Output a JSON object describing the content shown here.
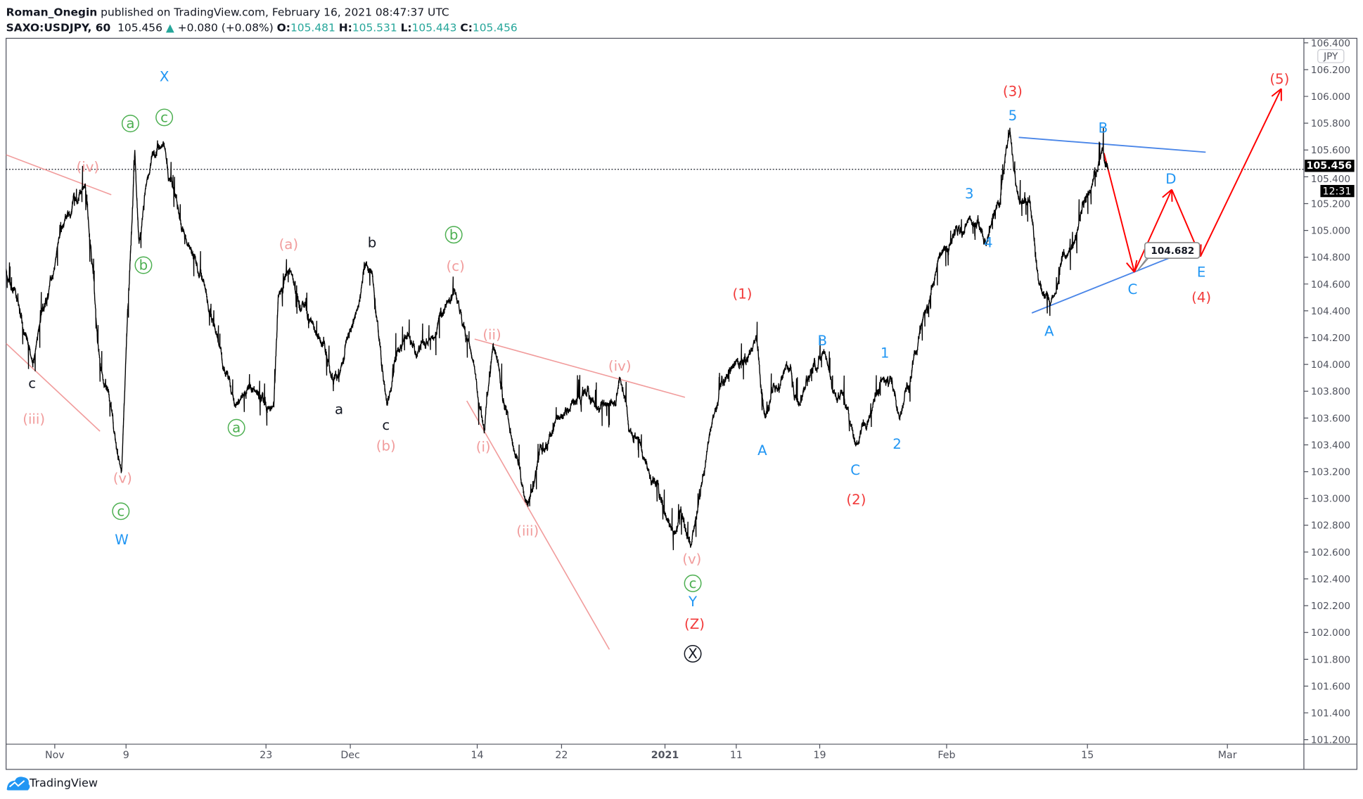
{
  "header": {
    "author": "Roman_Onegin",
    "published": " published on TradingView.com, February 16, 2021 08:47:37 UTC",
    "symbol": "SAXO:USDJPY, 60",
    "last": "105.456",
    "change": "+0.080 (+0.08%)",
    "o_label": "O:",
    "o": "105.481",
    "h_label": "H:",
    "h": "105.531",
    "l_label": "L:",
    "l": "105.443",
    "c_label": "C:",
    "c": "105.456"
  },
  "price_axis": {
    "currency": "JPY",
    "ticks": [
      "106.400",
      "106.200",
      "106.000",
      "105.800",
      "105.600",
      "105.400",
      "105.200",
      "105.000",
      "104.800",
      "104.600",
      "104.400",
      "104.200",
      "104.000",
      "103.800",
      "103.600",
      "103.400",
      "103.200",
      "103.000",
      "102.800",
      "102.600",
      "102.400",
      "102.200",
      "102.000",
      "101.800",
      "101.600",
      "101.400",
      "101.200"
    ],
    "current_price": "105.456",
    "countdown": "12:31"
  },
  "time_axis": {
    "ticks": [
      "Nov",
      "9",
      "23",
      "Dec",
      "14",
      "22",
      "2021",
      "11",
      "19",
      "Feb",
      "15",
      "Mar"
    ]
  },
  "footer": {
    "brand": "TradingView"
  },
  "colors": {
    "pink": "#f19c9c",
    "green": "#4caf50",
    "blue": "#2196f3",
    "red": "#f23a3a",
    "black": "#131722",
    "trend_blue": "#4a86e8",
    "arrow_red": "#ff0000"
  },
  "annotations": [
    {
      "text": "X",
      "color": "blue"
    },
    {
      "text": "a",
      "color": "green",
      "circled": true
    },
    {
      "text": "c",
      "color": "green",
      "circled": true
    },
    {
      "text": "(iv)",
      "color": "pink"
    },
    {
      "text": "b",
      "color": "green",
      "circled": true
    },
    {
      "text": "c",
      "color": "black"
    },
    {
      "text": "(iii)",
      "color": "pink"
    },
    {
      "text": "(v)",
      "color": "pink"
    },
    {
      "text": "c",
      "color": "green",
      "circled": true
    },
    {
      "text": "W",
      "color": "blue"
    },
    {
      "text": "a",
      "color": "green",
      "circled": true
    },
    {
      "text": "(a)",
      "color": "pink"
    },
    {
      "text": "b",
      "color": "black"
    },
    {
      "text": "a",
      "color": "black"
    },
    {
      "text": "c",
      "color": "black"
    },
    {
      "text": "(b)",
      "color": "pink"
    },
    {
      "text": "b",
      "color": "green",
      "circled": true
    },
    {
      "text": "(c)",
      "color": "pink"
    },
    {
      "text": "(i)",
      "color": "pink"
    },
    {
      "text": "(ii)",
      "color": "pink"
    },
    {
      "text": "(iii)",
      "color": "pink"
    },
    {
      "text": "(iv)",
      "color": "pink"
    },
    {
      "text": "(v)",
      "color": "pink"
    },
    {
      "text": "c",
      "color": "green",
      "circled": true
    },
    {
      "text": "Y",
      "color": "blue"
    },
    {
      "text": "(Z)",
      "color": "red"
    },
    {
      "text": "X",
      "color": "black",
      "circled": true
    },
    {
      "text": "(1)",
      "color": "red"
    },
    {
      "text": "A",
      "color": "blue"
    },
    {
      "text": "B",
      "color": "blue"
    },
    {
      "text": "C",
      "color": "blue"
    },
    {
      "text": "(2)",
      "color": "red"
    },
    {
      "text": "1",
      "color": "blue"
    },
    {
      "text": "2",
      "color": "blue"
    },
    {
      "text": "3",
      "color": "blue"
    },
    {
      "text": "4",
      "color": "blue"
    },
    {
      "text": "5",
      "color": "blue"
    },
    {
      "text": "(3)",
      "color": "red"
    },
    {
      "text": "A",
      "color": "blue"
    },
    {
      "text": "B",
      "color": "blue"
    },
    {
      "text": "C",
      "color": "blue"
    },
    {
      "text": "D",
      "color": "blue"
    },
    {
      "text": "E",
      "color": "blue"
    },
    {
      "text": "(4)",
      "color": "red"
    },
    {
      "text": "(5)",
      "color": "red"
    }
  ],
  "price_callout": "104.682",
  "chart_data": {
    "type": "line",
    "title": "SAXO:USDJPY, 60",
    "ylim": [
      101.2,
      106.4
    ],
    "grid": false,
    "pivots": [
      [
        "2020-10-26T12",
        104.7
      ],
      [
        "2020-10-29T13",
        104.0
      ],
      [
        "2020-11-01T17",
        105.0
      ],
      [
        "2020-11-04T10",
        105.35
      ],
      [
        "2020-11-06T02",
        104.0
      ],
      [
        "2020-11-08T12",
        103.2
      ],
      [
        "2020-11-09T21",
        105.6
      ],
      [
        "2020-11-10T07",
        104.9
      ],
      [
        "2020-11-11T04",
        105.4
      ],
      [
        "2020-11-12T18",
        105.65
      ],
      [
        "2020-11-13T19",
        105.3
      ],
      [
        "2020-11-15T02",
        104.9
      ],
      [
        "2020-11-16T20",
        104.6
      ],
      [
        "2020-11-18T03",
        104.2
      ],
      [
        "2020-11-19T21",
        103.7
      ],
      [
        "2020-11-22T01",
        103.8
      ],
      [
        "2020-11-23T18",
        103.7
      ],
      [
        "2020-11-24T04",
        104.5
      ],
      [
        "2020-11-25T06",
        104.7
      ],
      [
        "2020-11-27T11",
        104.3
      ],
      [
        "2020-11-29T22",
        103.9
      ],
      [
        "2020-12-01T15",
        104.4
      ],
      [
        "2020-12-03T05",
        104.7
      ],
      [
        "2020-12-04T18",
        103.7
      ],
      [
        "2020-12-06T12",
        104.2
      ],
      [
        "2020-12-09T15",
        104.2
      ],
      [
        "2020-12-11T17",
        104.55
      ],
      [
        "2020-12-13T16",
        104.0
      ],
      [
        "2020-12-14T16",
        103.5
      ],
      [
        "2020-12-15T12",
        104.15
      ],
      [
        "2020-12-17T09",
        103.4
      ],
      [
        "2020-12-18T19",
        102.95
      ],
      [
        "2020-12-21T12",
        103.6
      ],
      [
        "2020-12-26T13",
        103.7
      ],
      [
        "2020-12-27T15",
        103.9
      ],
      [
        "2020-12-29T22",
        103.3
      ],
      [
        "2021-01-02T05",
        102.75
      ],
      [
        "2021-01-04T16",
        102.65
      ],
      [
        "2021-01-07T17",
        103.6
      ],
      [
        "2021-01-10T18",
        104.0
      ],
      [
        "2021-01-12T22",
        104.2
      ],
      [
        "2021-01-13T18",
        103.6
      ],
      [
        "2021-01-15T20",
        104.0
      ],
      [
        "2021-01-17T02",
        103.7
      ],
      [
        "2021-01-19T11",
        104.1
      ],
      [
        "2021-01-22T18",
        103.4
      ],
      [
        "2021-01-24T02",
        103.6
      ],
      [
        "2021-01-25T10",
        103.9
      ],
      [
        "2021-01-27T05",
        103.6
      ],
      [
        "2021-01-29T10",
        104.3
      ],
      [
        "2021-01-31T05",
        104.8
      ],
      [
        "2021-02-03T06",
        105.1
      ],
      [
        "2021-02-04T23",
        104.9
      ],
      [
        "2021-02-07T07",
        105.75
      ],
      [
        "2021-02-08T00",
        105.3
      ],
      [
        "2021-02-09T07",
        105.2
      ],
      [
        "2021-02-10T04",
        104.6
      ],
      [
        "2021-02-11T07",
        104.45
      ],
      [
        "2021-02-13T15",
        104.9
      ],
      [
        "2021-02-15T08",
        105.3
      ],
      [
        "2021-02-16T12",
        105.62
      ],
      [
        "2021-02-17T02",
        105.456
      ]
    ]
  }
}
